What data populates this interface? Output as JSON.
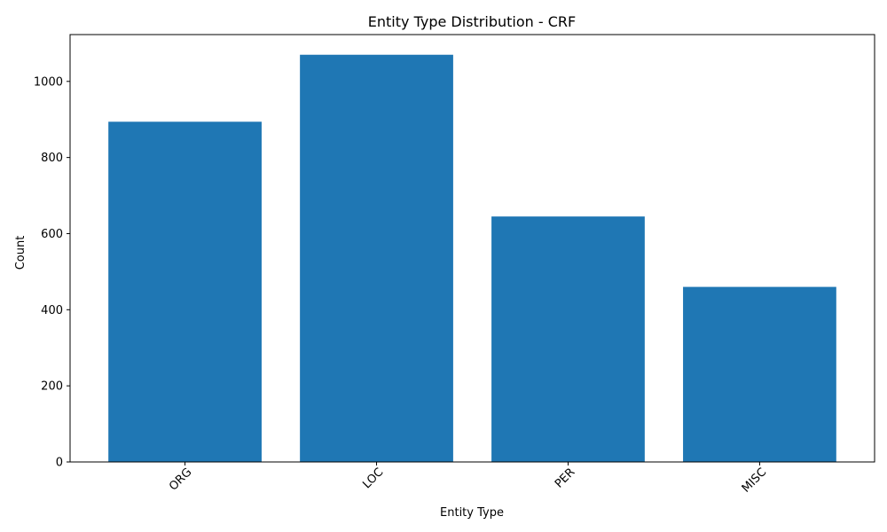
{
  "chart_data": {
    "type": "bar",
    "title": "Entity Type Distribution - CRF",
    "xlabel": "Entity Type",
    "ylabel": "Count",
    "categories": [
      "ORG",
      "LOC",
      "PER",
      "MISC"
    ],
    "values": [
      894,
      1070,
      645,
      460
    ],
    "ylim": [
      0,
      1123
    ],
    "yticks": [
      0,
      200,
      400,
      600,
      800,
      1000
    ],
    "bar_color": "#1f77b4",
    "grid": false,
    "legend": false,
    "xtick_rotation": 45
  }
}
